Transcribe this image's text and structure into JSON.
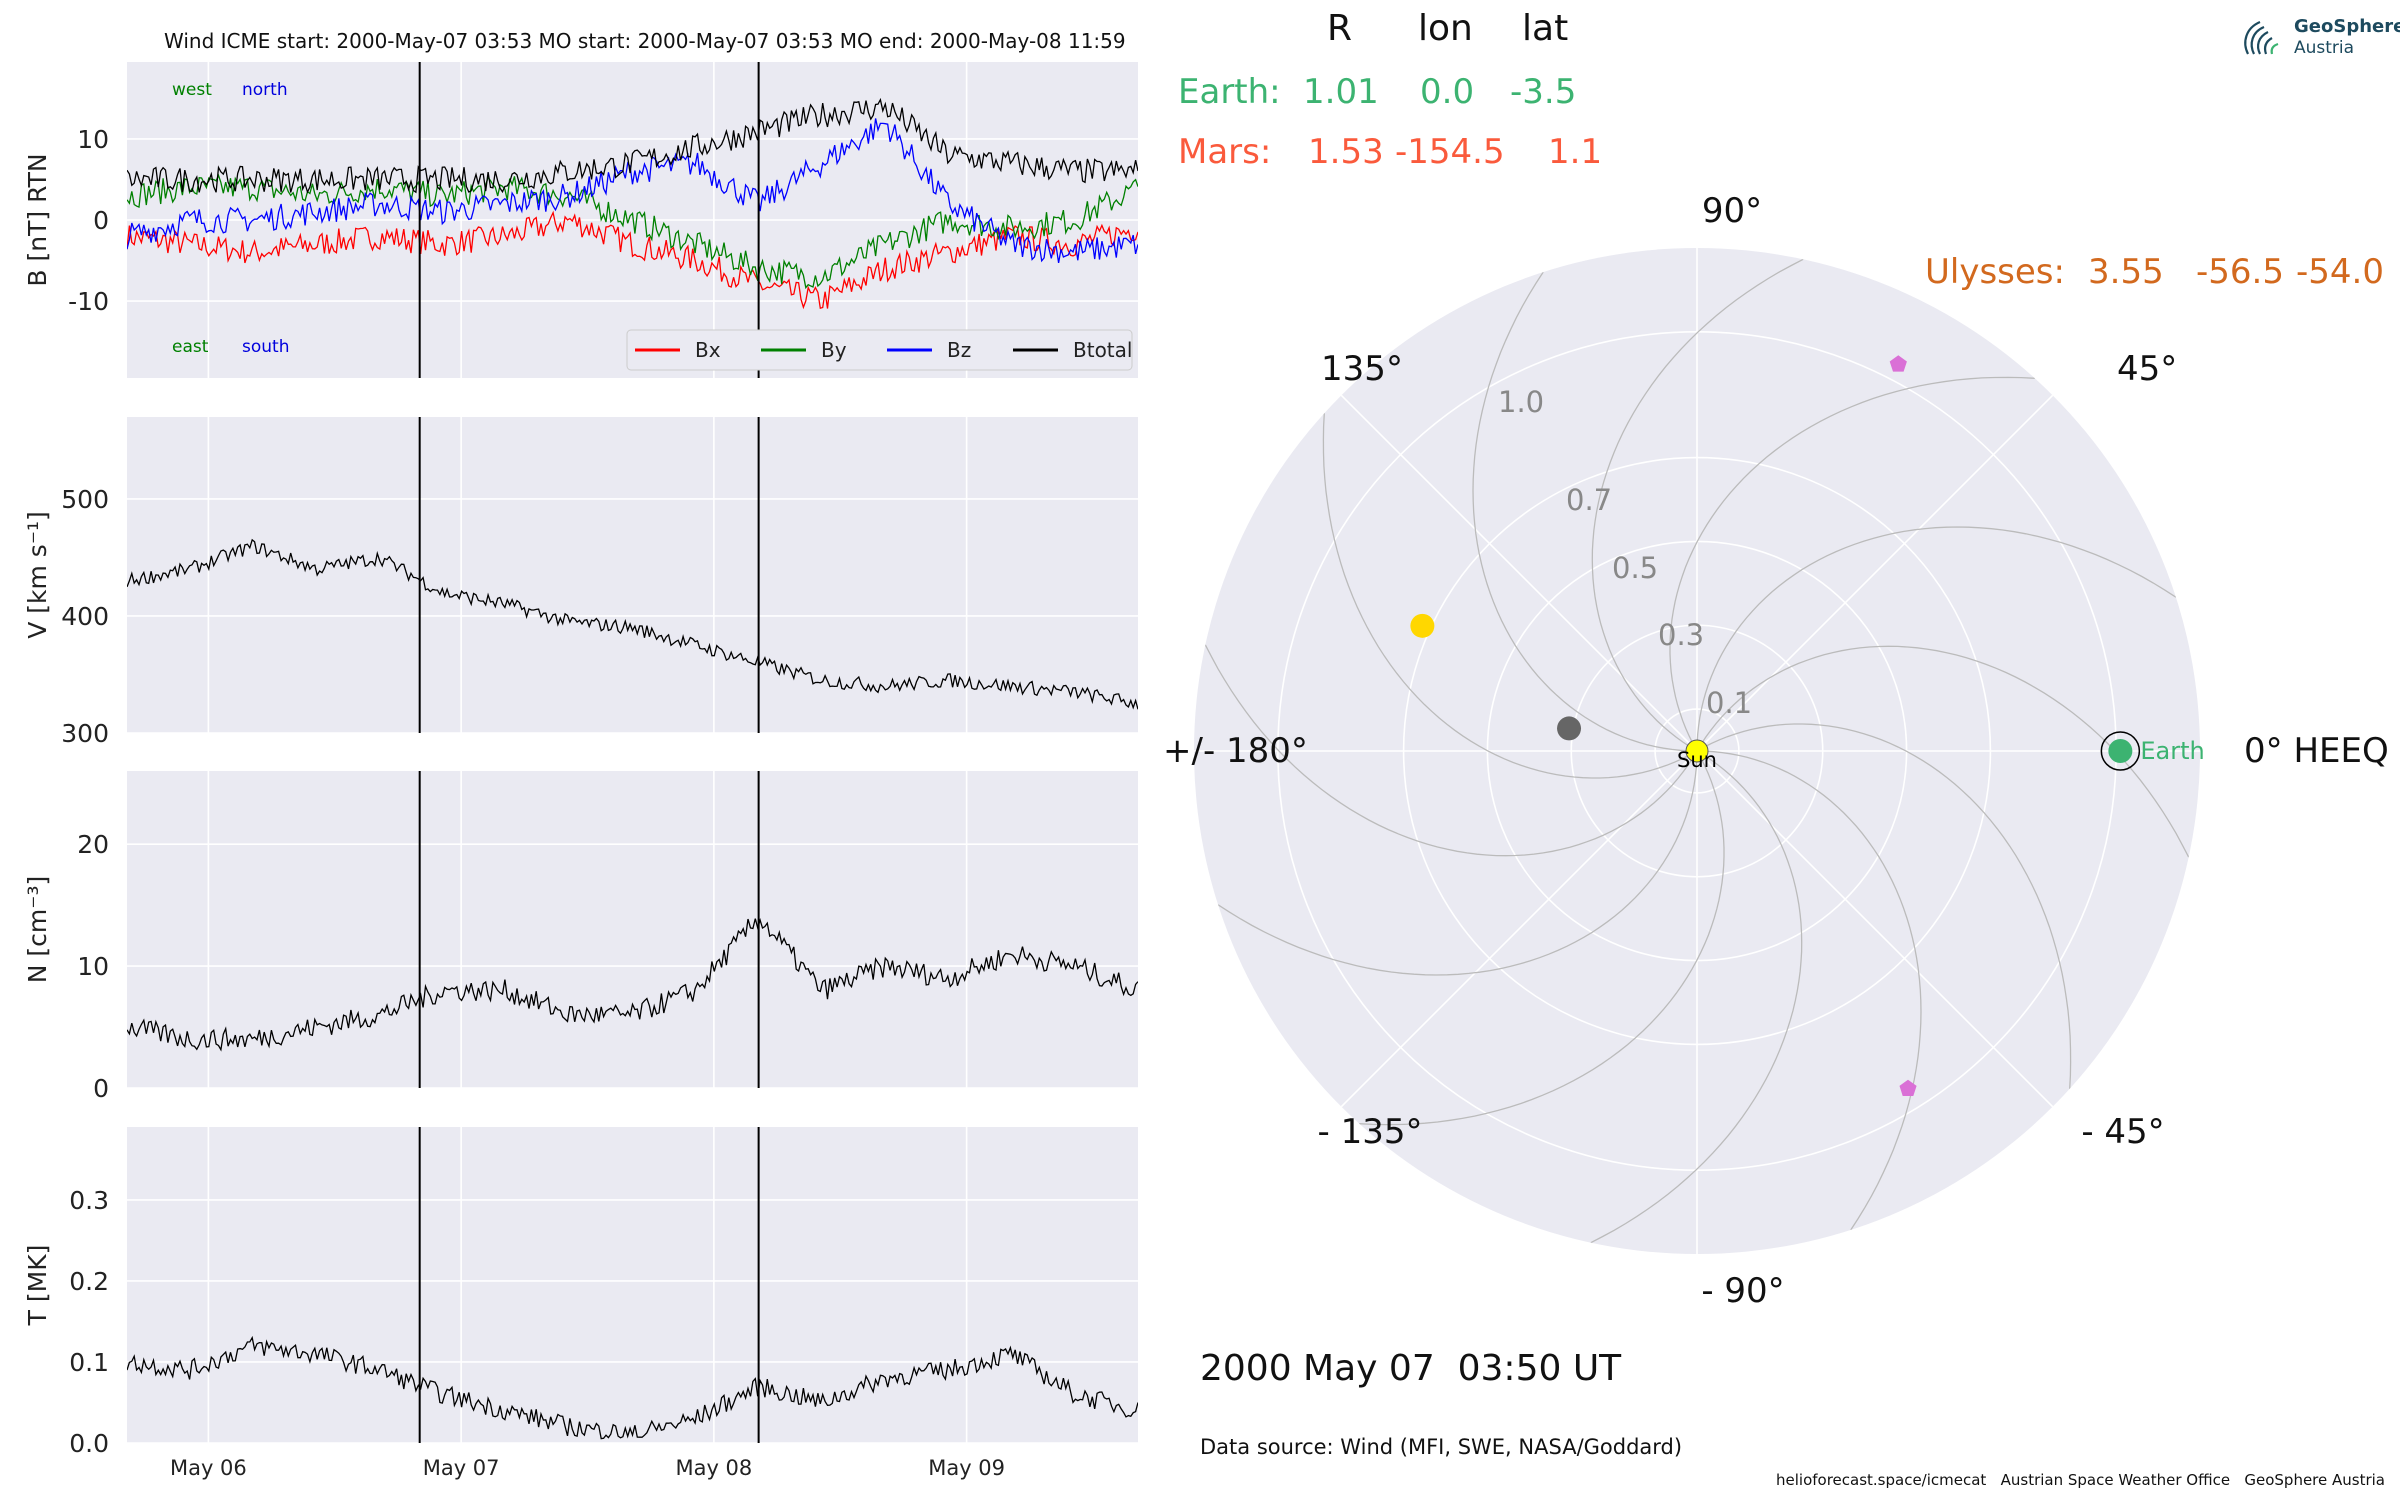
{
  "figure": {
    "logo": {
      "name": "GeoSphere",
      "sub": "Austria"
    },
    "date_text": "2000 May 07  03:50 UT",
    "data_source": "Data source: Wind (MFI, SWE, NASA/Goddard)",
    "credits": "helioforecast.space/icmecat   Austrian Space Weather Office   GeoSphere Austria",
    "table_header": {
      "r": "R",
      "lon": "lon",
      "lat": "lat"
    },
    "earth": {
      "label": "Earth:",
      "r": "1.01",
      "lon": "0.0",
      "lat": "-3.5",
      "color": "#3cb371"
    },
    "mars": {
      "label": "Mars:",
      "r": "1.53",
      "lon": "-154.5",
      "lat": "1.1",
      "color": "#fa5a3c"
    },
    "ulysses": {
      "label": "Ulysses:",
      "r": "3.55",
      "lon": "-56.5",
      "lat": "-54.0",
      "color": "#d2691e"
    }
  },
  "chart_data": [
    {
      "type": "line",
      "panel": "B",
      "title": "Wind    ICME start: 2000-May-07 03:53   MO start: 2000-May-07 03:53   MO end: 2000-May-08 11:59",
      "ylabel": "B [nT] RTN",
      "ylim": [
        -19.5,
        19.5
      ],
      "yticks": [
        -10,
        0,
        10
      ],
      "annotations": [
        {
          "text": "west",
          "color": "#008000",
          "pos": "top-left"
        },
        {
          "text": "north",
          "color": "#0000dd",
          "pos": "top-left"
        },
        {
          "text": "east",
          "color": "#008000",
          "pos": "bottom-left"
        },
        {
          "text": "south",
          "color": "#0000dd",
          "pos": "bottom-left"
        }
      ],
      "legend": "lower-right",
      "x": [
        0,
        0.25,
        0.5,
        0.75,
        1.0,
        1.25,
        1.5,
        1.75,
        2.0,
        2.25,
        2.5,
        2.75,
        3.0,
        3.25,
        3.5,
        3.75,
        4.0
      ],
      "series": [
        {
          "name": "Bx",
          "color": "#ff0000",
          "values": [
            -2,
            -3,
            -4,
            -3,
            -2,
            -3,
            -2,
            0,
            -3,
            -5,
            -8,
            -10,
            -6,
            -4,
            -2,
            -3,
            -1
          ]
        },
        {
          "name": "By",
          "color": "#008000",
          "values": [
            3,
            4,
            4,
            3,
            4,
            3,
            4,
            3,
            0,
            -3,
            -6,
            -7,
            -3,
            0,
            -1,
            0,
            4
          ]
        },
        {
          "name": "Bz",
          "color": "#0000ff",
          "values": [
            -2,
            0,
            0,
            1,
            2,
            1,
            2,
            3,
            6,
            7,
            2,
            7,
            12,
            2,
            -3,
            -4,
            -3
          ]
        },
        {
          "name": "Btotal",
          "color": "#000000",
          "values": [
            5,
            5,
            5,
            5,
            5,
            5,
            5,
            6,
            7,
            9,
            11,
            13,
            14,
            8,
            7,
            6,
            6
          ]
        }
      ],
      "event_lines": [
        1.158,
        2.499
      ]
    },
    {
      "type": "line",
      "panel": "V",
      "ylabel": "V [km s$^{-1}$]",
      "ylim": [
        300,
        570
      ],
      "yticks": [
        300,
        400,
        500
      ],
      "x": [
        0,
        0.25,
        0.5,
        0.75,
        1.0,
        1.25,
        1.5,
        1.75,
        2.0,
        2.25,
        2.5,
        2.75,
        3.0,
        3.25,
        3.5,
        3.75,
        4.0
      ],
      "series": [
        {
          "name": "V",
          "color": "#000000",
          "values": [
            430,
            440,
            460,
            440,
            450,
            420,
            410,
            395,
            390,
            375,
            360,
            345,
            340,
            345,
            340,
            335,
            325
          ]
        }
      ],
      "event_lines": [
        1.158,
        2.499
      ]
    },
    {
      "type": "line",
      "panel": "N",
      "ylabel": "N [cm$^{-3}$]",
      "ylim": [
        0,
        26
      ],
      "yticks": [
        0,
        10,
        20
      ],
      "x": [
        0,
        0.25,
        0.5,
        0.75,
        1.0,
        1.25,
        1.5,
        1.75,
        2.0,
        2.25,
        2.5,
        2.75,
        3.0,
        3.25,
        3.5,
        3.75,
        4.0
      ],
      "series": [
        {
          "name": "N",
          "color": "#000000",
          "values": [
            5,
            4,
            4,
            5,
            6,
            8,
            8,
            6,
            6,
            8,
            14,
            8,
            10,
            9,
            11,
            10,
            8
          ]
        }
      ],
      "event_lines": [
        1.158,
        2.499
      ]
    },
    {
      "type": "line",
      "panel": "T",
      "ylabel": "T [MK]",
      "ylim": [
        0,
        0.39
      ],
      "yticks": [
        0.0,
        0.1,
        0.2,
        0.3
      ],
      "xticks": [
        {
          "x": 0.322,
          "label": "May 06"
        },
        {
          "x": 1.322,
          "label": "May 07"
        },
        {
          "x": 2.322,
          "label": "May 08"
        },
        {
          "x": 3.322,
          "label": "May 09"
        }
      ],
      "x": [
        0,
        0.25,
        0.5,
        0.75,
        1.0,
        1.25,
        1.5,
        1.75,
        2.0,
        2.25,
        2.5,
        2.75,
        3.0,
        3.25,
        3.5,
        3.75,
        4.0
      ],
      "series": [
        {
          "name": "T",
          "color": "#000000",
          "values": [
            0.1,
            0.09,
            0.12,
            0.11,
            0.09,
            0.06,
            0.04,
            0.02,
            0.01,
            0.03,
            0.07,
            0.05,
            0.08,
            0.09,
            0.11,
            0.06,
            0.04
          ]
        }
      ],
      "event_lines": [
        1.158,
        2.499
      ]
    },
    {
      "type": "scatter",
      "panel": "polar",
      "projection": "polar",
      "angle_labels": [
        "0° HEEQ",
        "45°",
        "90°",
        "135°",
        "+/- 180°",
        "- 135°",
        "- 90°",
        "- 45°"
      ],
      "radial_ticks": [
        0.1,
        0.3,
        0.5,
        0.7,
        1.0
      ],
      "radial_labels": [
        "0.1",
        "0.3",
        "0.5",
        "0.7",
        "1.0"
      ],
      "rlim": [
        0,
        1.2
      ],
      "points": [
        {
          "name": "Sun",
          "r": 0.0,
          "lon": 0.0,
          "color": "#ffff00",
          "marker": "circle",
          "label": "Sun"
        },
        {
          "name": "Earth",
          "r": 1.01,
          "lon": 0.0,
          "color": "#3cb371",
          "marker": "circle",
          "label": "Earth"
        },
        {
          "name": "mercury",
          "r": 0.31,
          "lon": 170.0,
          "color": "#666666",
          "marker": "circle",
          "label": ""
        },
        {
          "name": "venus",
          "r": 0.72,
          "lon": 155.5,
          "color": "#ffd700",
          "marker": "circle",
          "label": ""
        },
        {
          "name": "spacecraft-upper",
          "r": 1.04,
          "lon": 62.5,
          "color": "#da70d6",
          "marker": "pentagon",
          "label": ""
        },
        {
          "name": "spacecraft-lower",
          "r": 0.95,
          "lon": -58.0,
          "color": "#da70d6",
          "marker": "pentagon",
          "label": ""
        }
      ]
    }
  ]
}
